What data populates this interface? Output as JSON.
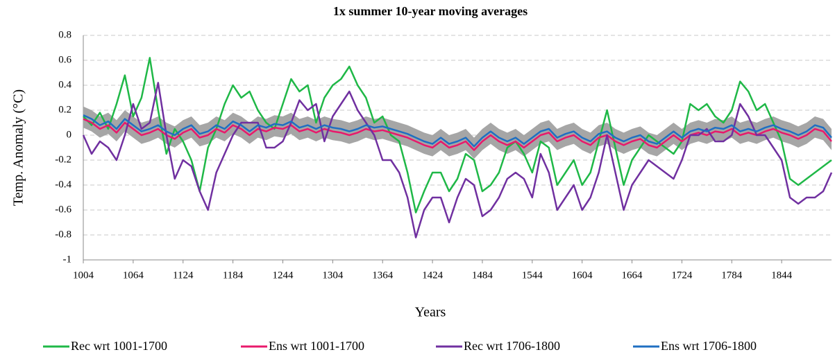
{
  "chart_data": {
    "type": "line",
    "title": "1x summer 10-year moving averages",
    "x_label": "Years",
    "y_label": "Temp. Anomaly (°C)",
    "x": [
      1004,
      1014,
      1024,
      1034,
      1044,
      1054,
      1064,
      1074,
      1084,
      1094,
      1104,
      1114,
      1124,
      1134,
      1144,
      1154,
      1164,
      1174,
      1184,
      1194,
      1204,
      1214,
      1224,
      1234,
      1244,
      1254,
      1264,
      1274,
      1284,
      1294,
      1304,
      1314,
      1324,
      1334,
      1344,
      1354,
      1364,
      1374,
      1384,
      1394,
      1404,
      1414,
      1424,
      1434,
      1444,
      1454,
      1464,
      1474,
      1484,
      1494,
      1504,
      1514,
      1524,
      1534,
      1544,
      1554,
      1564,
      1574,
      1584,
      1594,
      1604,
      1614,
      1624,
      1634,
      1644,
      1654,
      1664,
      1674,
      1684,
      1694,
      1704,
      1714,
      1724,
      1734,
      1744,
      1754,
      1764,
      1774,
      1784,
      1794,
      1804,
      1814,
      1824,
      1834,
      1844,
      1854,
      1864,
      1874,
      1884,
      1894,
      1904
    ],
    "band": {
      "color": "#a6a6a6",
      "lower": [
        0.06,
        0.03,
        -0.02,
        0.01,
        -0.05,
        0.03,
        -0.02,
        -0.07,
        -0.05,
        -0.02,
        -0.07,
        -0.1,
        -0.05,
        -0.02,
        -0.09,
        -0.07,
        -0.02,
        -0.05,
        0.01,
        -0.02,
        -0.07,
        -0.02,
        -0.04,
        -0.01,
        -0.02,
        0.01,
        -0.04,
        -0.02,
        -0.05,
        -0.02,
        -0.04,
        -0.05,
        -0.07,
        -0.05,
        -0.02,
        -0.04,
        -0.03,
        -0.05,
        -0.07,
        -0.09,
        -0.12,
        -0.15,
        -0.17,
        -0.12,
        -0.17,
        -0.15,
        -0.12,
        -0.19,
        -0.12,
        -0.07,
        -0.12,
        -0.15,
        -0.12,
        -0.17,
        -0.12,
        -0.07,
        -0.05,
        -0.12,
        -0.09,
        -0.07,
        -0.12,
        -0.15,
        -0.09,
        -0.07,
        -0.12,
        -0.15,
        -0.12,
        -0.1,
        -0.15,
        -0.17,
        -0.12,
        -0.07,
        -0.12,
        -0.07,
        -0.05,
        -0.07,
        -0.04,
        -0.05,
        -0.02,
        -0.07,
        -0.05,
        -0.07,
        -0.04,
        -0.02,
        -0.05,
        -0.07,
        -0.1,
        -0.07,
        -0.02,
        -0.04,
        -0.12
      ],
      "upper": [
        0.23,
        0.2,
        0.15,
        0.18,
        0.12,
        0.2,
        0.15,
        0.1,
        0.12,
        0.15,
        0.1,
        0.07,
        0.12,
        0.15,
        0.08,
        0.1,
        0.15,
        0.12,
        0.18,
        0.15,
        0.1,
        0.15,
        0.13,
        0.16,
        0.15,
        0.18,
        0.13,
        0.15,
        0.12,
        0.15,
        0.13,
        0.12,
        0.1,
        0.12,
        0.15,
        0.13,
        0.14,
        0.12,
        0.1,
        0.08,
        0.05,
        0.02,
        0.0,
        0.05,
        0.0,
        0.02,
        0.05,
        -0.02,
        0.05,
        0.1,
        0.05,
        0.02,
        0.05,
        0.0,
        0.05,
        0.1,
        0.12,
        0.05,
        0.08,
        0.1,
        0.05,
        0.02,
        0.08,
        0.1,
        0.05,
        0.02,
        0.05,
        0.07,
        0.02,
        0.0,
        0.05,
        0.1,
        0.05,
        0.1,
        0.12,
        0.1,
        0.13,
        0.12,
        0.15,
        0.1,
        0.12,
        0.1,
        0.13,
        0.15,
        0.12,
        0.1,
        0.07,
        0.1,
        0.15,
        0.13,
        0.05
      ]
    },
    "series": [
      {
        "name": "Rec wrt 1001-1700",
        "color": "#1fb847",
        "values": [
          0.15,
          0.08,
          0.18,
          0.05,
          0.25,
          0.48,
          0.15,
          0.3,
          0.62,
          0.2,
          -0.15,
          0.05,
          -0.05,
          -0.2,
          -0.45,
          -0.1,
          0.05,
          0.25,
          0.4,
          0.3,
          0.35,
          0.2,
          0.1,
          0.05,
          0.25,
          0.45,
          0.35,
          0.4,
          0.1,
          0.3,
          0.4,
          0.45,
          0.55,
          0.4,
          0.3,
          0.1,
          0.15,
          0.0,
          -0.05,
          -0.3,
          -0.62,
          -0.45,
          -0.3,
          -0.3,
          -0.45,
          -0.35,
          -0.15,
          -0.2,
          -0.45,
          -0.4,
          -0.3,
          -0.1,
          -0.05,
          -0.15,
          -0.3,
          -0.05,
          -0.1,
          -0.4,
          -0.3,
          -0.2,
          -0.4,
          -0.3,
          -0.05,
          0.2,
          -0.1,
          -0.4,
          -0.2,
          -0.1,
          0.0,
          -0.05,
          -0.1,
          -0.15,
          -0.05,
          0.25,
          0.2,
          0.25,
          0.15,
          0.1,
          0.2,
          0.43,
          0.35,
          0.2,
          0.25,
          0.1,
          -0.05,
          -0.35,
          -0.4,
          -0.35,
          -0.3,
          -0.25,
          -0.2
        ]
      },
      {
        "name": "Ens wrt 1001-1700",
        "color": "#e8196b",
        "values": [
          0.13,
          0.1,
          0.05,
          0.08,
          0.02,
          0.1,
          0.05,
          0.0,
          0.02,
          0.05,
          0.0,
          -0.03,
          0.02,
          0.05,
          -0.02,
          0.0,
          0.05,
          0.02,
          0.08,
          0.05,
          0.0,
          0.05,
          0.03,
          0.06,
          0.05,
          0.08,
          0.03,
          0.05,
          0.02,
          0.05,
          0.03,
          0.02,
          0.0,
          0.02,
          0.05,
          0.03,
          0.04,
          0.02,
          0.0,
          -0.02,
          -0.05,
          -0.08,
          -0.1,
          -0.05,
          -0.1,
          -0.08,
          -0.05,
          -0.12,
          -0.05,
          0.0,
          -0.05,
          -0.08,
          -0.05,
          -0.1,
          -0.05,
          0.0,
          0.02,
          -0.05,
          -0.02,
          0.0,
          -0.05,
          -0.08,
          -0.02,
          0.0,
          -0.05,
          -0.08,
          -0.05,
          -0.03,
          -0.08,
          -0.1,
          -0.05,
          0.0,
          -0.05,
          0.0,
          0.02,
          0.0,
          0.03,
          0.02,
          0.05,
          0.0,
          0.02,
          0.0,
          0.03,
          0.05,
          0.02,
          0.0,
          -0.03,
          0.0,
          0.05,
          0.03,
          -0.05
        ]
      },
      {
        "name": "Rec wrt 1706-1800",
        "color": "#7030a0",
        "values": [
          0.0,
          -0.15,
          -0.05,
          -0.1,
          -0.2,
          0.0,
          0.25,
          0.05,
          0.1,
          0.42,
          0.0,
          -0.35,
          -0.2,
          -0.25,
          -0.45,
          -0.6,
          -0.3,
          -0.15,
          0.0,
          0.1,
          0.1,
          0.1,
          -0.1,
          -0.1,
          -0.05,
          0.1,
          0.28,
          0.2,
          0.25,
          -0.05,
          0.15,
          0.25,
          0.35,
          0.2,
          0.1,
          0.0,
          -0.2,
          -0.2,
          -0.3,
          -0.5,
          -0.82,
          -0.6,
          -0.5,
          -0.5,
          -0.7,
          -0.5,
          -0.35,
          -0.4,
          -0.65,
          -0.6,
          -0.5,
          -0.35,
          -0.3,
          -0.35,
          -0.5,
          -0.15,
          -0.3,
          -0.6,
          -0.5,
          -0.4,
          -0.6,
          -0.5,
          -0.3,
          0.0,
          -0.3,
          -0.6,
          -0.4,
          -0.3,
          -0.2,
          -0.25,
          -0.3,
          -0.35,
          -0.2,
          0.0,
          0.0,
          0.05,
          -0.05,
          -0.05,
          0.0,
          0.25,
          0.15,
          0.0,
          0.0,
          -0.1,
          -0.2,
          -0.5,
          -0.55,
          -0.5,
          -0.5,
          -0.45,
          -0.3
        ]
      },
      {
        "name": "Ens wrt 1706-1800",
        "color": "#1f6fc2",
        "values": [
          0.16,
          0.13,
          0.08,
          0.11,
          0.05,
          0.13,
          0.08,
          0.03,
          0.05,
          0.08,
          0.03,
          0.0,
          0.05,
          0.08,
          0.01,
          0.03,
          0.08,
          0.05,
          0.11,
          0.08,
          0.03,
          0.08,
          0.06,
          0.09,
          0.08,
          0.11,
          0.06,
          0.08,
          0.05,
          0.08,
          0.06,
          0.05,
          0.03,
          0.05,
          0.08,
          0.06,
          0.07,
          0.05,
          0.03,
          0.01,
          -0.02,
          -0.05,
          -0.07,
          -0.02,
          -0.07,
          -0.05,
          -0.02,
          -0.09,
          -0.02,
          0.03,
          -0.02,
          -0.05,
          -0.02,
          -0.07,
          -0.02,
          0.03,
          0.05,
          -0.02,
          0.01,
          0.03,
          -0.02,
          -0.05,
          0.01,
          0.03,
          -0.02,
          -0.05,
          -0.02,
          0.0,
          -0.05,
          -0.07,
          -0.02,
          0.03,
          -0.02,
          0.03,
          0.05,
          0.03,
          0.06,
          0.05,
          0.08,
          0.03,
          0.05,
          0.03,
          0.06,
          0.08,
          0.05,
          0.03,
          0.0,
          0.03,
          0.08,
          0.06,
          -0.02
        ]
      }
    ],
    "xlim": [
      1004,
      1904
    ],
    "xticks": [
      1004,
      1064,
      1124,
      1184,
      1244,
      1304,
      1364,
      1424,
      1484,
      1544,
      1604,
      1664,
      1724,
      1784,
      1844
    ],
    "ylim": [
      -1,
      0.8
    ],
    "yticks": [
      -1,
      -0.8,
      -0.6,
      -0.4,
      -0.2,
      0,
      0.2,
      0.4,
      0.6,
      0.8
    ],
    "grid": true,
    "legend": "bottom"
  }
}
